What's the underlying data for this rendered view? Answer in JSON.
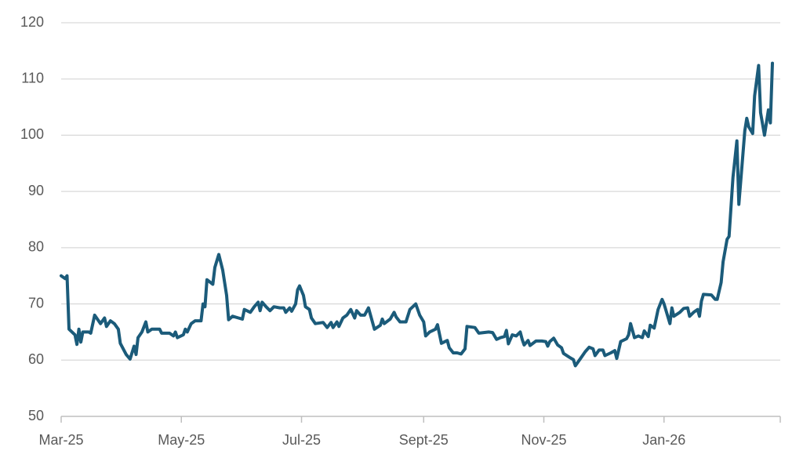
{
  "chart_data": {
    "type": "line",
    "x": [
      0,
      2,
      3,
      4,
      7,
      8,
      9,
      10,
      11,
      14,
      15,
      17,
      19,
      20,
      22,
      23,
      25,
      27,
      29,
      30,
      33,
      35,
      37,
      38,
      39,
      41,
      43,
      44,
      46,
      50,
      51,
      55,
      57,
      58,
      59,
      62,
      63,
      64,
      66,
      68,
      71,
      72,
      73,
      74,
      77,
      78,
      80,
      82,
      84,
      85,
      87,
      90,
      92,
      93,
      96,
      98,
      100,
      101,
      102,
      104,
      106,
      108,
      111,
      113,
      114,
      116,
      117,
      119,
      120,
      121,
      123,
      124,
      126,
      127,
      129,
      133,
      135,
      137,
      138,
      140,
      141,
      143,
      145,
      147,
      149,
      150,
      152,
      154,
      156,
      158,
      159,
      162,
      163,
      164,
      167,
      169,
      170,
      172,
      175,
      177,
      180,
      182,
      184,
      185,
      187,
      190,
      191,
      193,
      196,
      197,
      199,
      201,
      203,
      205,
      206,
      210,
      212,
      217,
      219,
      221,
      223,
      225,
      226,
      227,
      229,
      231,
      233,
      234,
      235,
      237,
      238,
      241,
      244,
      246,
      247,
      248,
      250,
      252,
      254,
      255,
      258,
      260,
      261,
      264,
      266,
      268,
      270,
      271,
      273,
      275,
      276,
      279,
      281,
      282,
      284,
      287,
      288,
      289,
      291,
      293,
      295,
      296,
      298,
      299,
      301,
      303,
      305,
      306,
      309,
      310,
      311,
      314,
      316,
      318,
      319,
      321,
      323,
      324,
      325,
      326,
      330,
      332,
      333,
      335,
      336,
      338,
      339,
      341,
      343,
      344,
      347,
      348,
      349,
      351,
      352,
      354,
      355,
      357,
      359,
      360,
      361
    ],
    "series": [
      {
        "color": "#1b5b7a",
        "values": [
          75,
          74.5,
          75,
          65.5,
          64.5,
          62.8,
          65.5,
          63.2,
          65,
          65,
          64.8,
          68,
          67,
          66.5,
          67.5,
          66,
          67,
          66.5,
          65.5,
          63,
          61,
          60.2,
          62.5,
          61,
          64,
          65,
          66.8,
          65,
          65.5,
          65.5,
          64.8,
          64.8,
          64.3,
          65,
          64,
          64.5,
          65.5,
          65,
          66.5,
          67,
          67,
          70,
          69.5,
          74.3,
          73.5,
          76.5,
          78.8,
          76,
          71.5,
          67.2,
          67.8,
          67.5,
          67.3,
          69,
          68.5,
          69.5,
          70.3,
          68.8,
          70.3,
          69.5,
          68.8,
          69.5,
          69.3,
          69.3,
          68.5,
          69.3,
          68.7,
          70,
          72.5,
          73.2,
          71.5,
          69.5,
          69,
          67.5,
          66.5,
          66.7,
          65.8,
          66.7,
          65.8,
          66.8,
          66,
          67.5,
          68,
          69,
          67.5,
          68.8,
          68,
          68,
          69.3,
          66.8,
          65.5,
          66.2,
          67.3,
          66.5,
          67.3,
          68.5,
          67.7,
          66.8,
          66.8,
          69,
          70,
          68,
          66.8,
          64.3,
          65,
          65.5,
          66.3,
          63,
          63.5,
          62.2,
          61.3,
          61.3,
          61.1,
          62,
          66,
          65.8,
          64.8,
          65,
          64.9,
          63.7,
          64,
          64.2,
          65.3,
          62.9,
          64.5,
          64.3,
          65,
          63.7,
          62.7,
          63.5,
          62.6,
          63.4,
          63.4,
          63.3,
          62.5,
          63.3,
          63.9,
          62.7,
          62.2,
          61.2,
          60.5,
          60.1,
          59,
          60.5,
          61.5,
          62.3,
          62,
          60.8,
          61.8,
          61.8,
          60.8,
          61.3,
          61.7,
          60.3,
          63.3,
          63.8,
          64.5,
          66.5,
          64,
          64.3,
          64,
          65.2,
          64.2,
          66.2,
          65.7,
          69,
          70.8,
          70,
          66.5,
          69.3,
          67.8,
          68.5,
          69.2,
          69.3,
          67.8,
          68.5,
          69,
          67.8,
          70.5,
          71.7,
          71.6,
          70.8,
          70.8,
          73.8,
          77.5,
          81.5,
          82,
          92.5,
          99,
          87.7,
          100.8,
          103,
          101.5,
          100.3,
          107,
          112.4,
          104,
          100,
          104.5,
          102.2,
          112.8
        ]
      }
    ],
    "xlim": [
      0,
      365
    ],
    "xticks": [
      {
        "value": 0,
        "label": "Mar-25"
      },
      {
        "value": 61,
        "label": "May-25"
      },
      {
        "value": 122,
        "label": "Jul-25"
      },
      {
        "value": 184,
        "label": "Sept-25"
      },
      {
        "value": 245,
        "label": "Nov-25"
      },
      {
        "value": 306,
        "label": "Jan-26"
      }
    ],
    "ylim": [
      50,
      120
    ],
    "yticks": [
      50,
      60,
      70,
      80,
      90,
      100,
      110,
      120
    ],
    "grid": true
  }
}
